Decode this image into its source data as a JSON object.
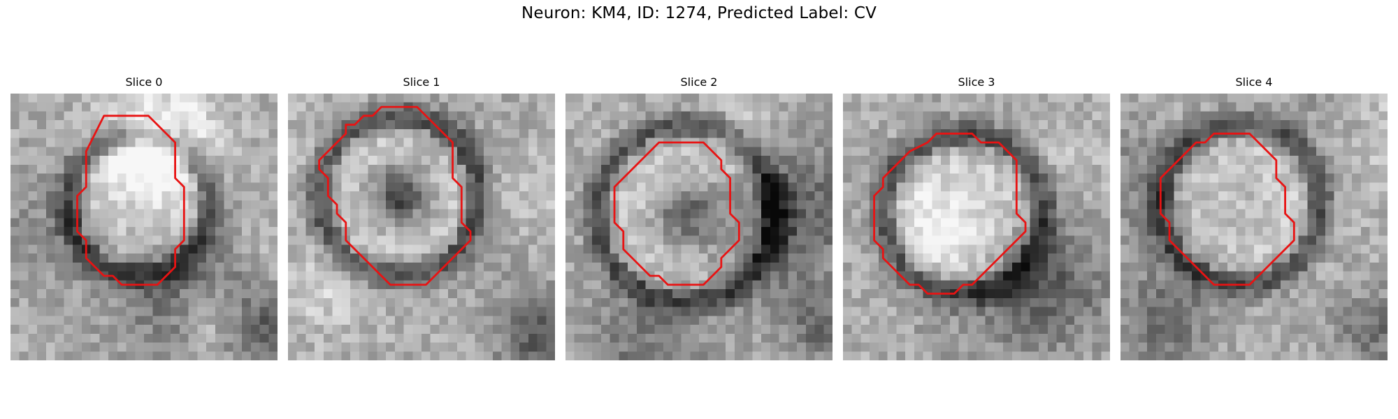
{
  "figure": {
    "title": "Neuron: KM4, ID: 1274, Predicted Label: CV"
  },
  "panels": [
    {
      "title": "Slice 0",
      "icon": "grayscale-microscopy-image"
    },
    {
      "title": "Slice 1",
      "icon": "grayscale-microscopy-image"
    },
    {
      "title": "Slice 2",
      "icon": "grayscale-microscopy-image"
    },
    {
      "title": "Slice 3",
      "icon": "grayscale-microscopy-image"
    },
    {
      "title": "Slice 4",
      "icon": "grayscale-microscopy-image"
    }
  ],
  "colors": {
    "contour": "#e81313",
    "background": "#ffffff"
  }
}
